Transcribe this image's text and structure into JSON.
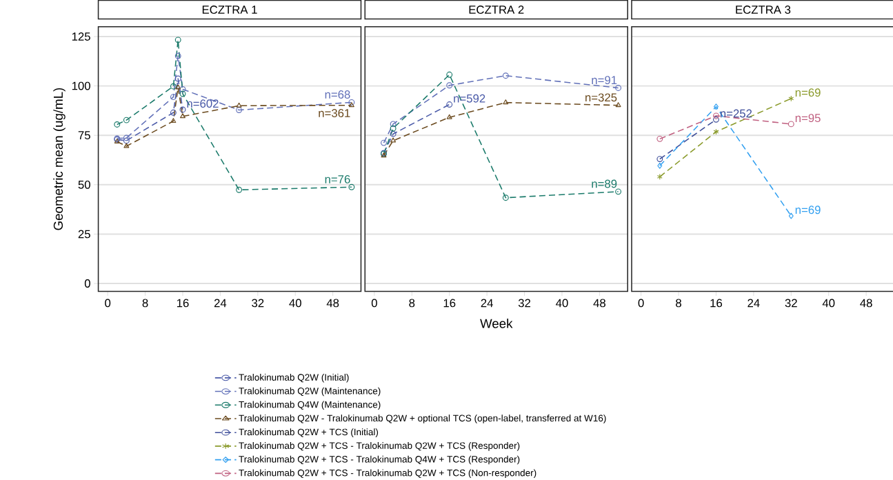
{
  "chart_data": [
    {
      "type": "line",
      "title": "ECZTRA 1",
      "ylabel": "Geometric mean (ug/mL)",
      "xlim": [
        -2,
        54
      ],
      "ylim": [
        -4,
        130
      ],
      "xticks": [
        0,
        8,
        16,
        24,
        32,
        40,
        48
      ],
      "yticks": [
        0,
        25,
        50,
        75,
        100,
        125
      ],
      "grid": "y",
      "legend": "bottom",
      "line_style": "dashed",
      "series": [
        {
          "name": "Tralokinumab Q2W (Initial)",
          "color": "#4a5aa8",
          "marker": "circle",
          "x": [
            2,
            4,
            14,
            15,
            16
          ],
          "values": [
            72.9,
            72.3,
            86.5,
            103.7,
            88
          ]
        },
        {
          "name": "Tralokinumab Q2W (Maintenance)",
          "color": "#6170b8",
          "marker": "circle",
          "x": [
            2,
            4,
            14,
            15,
            16,
            28,
            52
          ],
          "values": [
            73.4,
            73.7,
            94.4,
            115.2,
            98.3,
            87.8,
            91.7
          ]
        },
        {
          "name": "Tralokinumab Q4W (Maintenance)",
          "color": "#1a7a6a",
          "marker": "circle",
          "x": [
            2,
            4,
            14,
            15,
            16,
            28,
            52
          ],
          "values": [
            80.5,
            82.7,
            99.8,
            123.3,
            96,
            47.4,
            48.8
          ]
        },
        {
          "name": "Tralokinumab Q2W - Tralokinumab Q2W + optional TCS (open-label, transferred at W16)",
          "color": "#6b4a1e",
          "marker": "triangle",
          "x": [
            2,
            4,
            14,
            15,
            16,
            28,
            52
          ],
          "values": [
            71.8,
            69.5,
            82.2,
            99.2,
            84.6,
            90,
            90.2
          ]
        }
      ],
      "annotations": [
        {
          "text": "n=602",
          "x": 16,
          "y": 88
        },
        {
          "text": "n=68",
          "x": 52,
          "y": 91.7
        },
        {
          "text": "n=361",
          "x": 52,
          "y": 90.2
        },
        {
          "text": "n=76",
          "x": 52,
          "y": 48.8
        }
      ]
    },
    {
      "type": "line",
      "title": "ECZTRA 2",
      "xlabel": "Week",
      "xlim": [
        -2,
        54
      ],
      "ylim": [
        -4,
        130
      ],
      "xticks": [
        0,
        8,
        16,
        24,
        32,
        40,
        48
      ],
      "yticks": [
        0,
        25,
        50,
        75,
        100,
        125
      ],
      "grid": "y",
      "tick_labels": "x",
      "line_style": "dashed",
      "series": [
        {
          "color": "#4a5aa8",
          "marker": "circle",
          "x": [
            2,
            4,
            16
          ],
          "values": [
            66,
            75.7,
            90.6
          ]
        },
        {
          "color": "#6170b8",
          "marker": "circle",
          "x": [
            2,
            4,
            16,
            28,
            52
          ],
          "values": [
            71.2,
            80.7,
            100.3,
            105.2,
            99
          ]
        },
        {
          "color": "#1a7a6a",
          "marker": "circle",
          "x": [
            2,
            4,
            16,
            28,
            52
          ],
          "values": [
            65.6,
            78.5,
            105.7,
            43.4,
            46.5
          ]
        },
        {
          "color": "#6b4a1e",
          "marker": "triangle",
          "x": [
            2,
            4,
            16,
            28,
            52
          ],
          "values": [
            64.7,
            72.3,
            84.1,
            91.6,
            90.2
          ]
        }
      ],
      "annotations": [
        {
          "text": "n=592",
          "x": 16,
          "y": 90.6
        },
        {
          "text": "n=91",
          "x": 52,
          "y": 99
        },
        {
          "text": "n=325",
          "x": 52,
          "y": 90.2
        },
        {
          "text": "n=89",
          "x": 52,
          "y": 46.5
        }
      ]
    },
    {
      "type": "line",
      "title": "ECZTRA 3",
      "xlim": [
        -2,
        54
      ],
      "ylim": [
        -4,
        130
      ],
      "xticks": [
        0,
        8,
        16,
        24,
        32,
        40,
        48
      ],
      "yticks": [
        0,
        25,
        50,
        75,
        100,
        125
      ],
      "grid": "y",
      "tick_labels": "x",
      "legend": "bottom",
      "line_style": "dashed",
      "series": [
        {
          "name": "Tralokinumab Q2W + TCS (Initial)",
          "color": "#3d4d99",
          "marker": "circle",
          "x": [
            4,
            16
          ],
          "values": [
            63,
            83
          ]
        },
        {
          "name": "Tralokinumab Q2W + TCS - Tralokinumab Q2W + TCS (Responder)",
          "color": "#8a9a2a",
          "marker": "cross",
          "x": [
            4,
            16,
            32
          ],
          "values": [
            54,
            76.8,
            93.6
          ]
        },
        {
          "name": "Tralokinumab Q2W + TCS - Tralokinumab Q4W + TCS (Responder)",
          "color": "#33a0f0",
          "marker": "diamond",
          "x": [
            4,
            16,
            32
          ],
          "values": [
            59.6,
            89.5,
            34.2
          ]
        },
        {
          "name": "Tralokinumab Q2W + TCS - Tralokinumab Q2W + TCS (Non-responder)",
          "color": "#c06080",
          "marker": "circle",
          "x": [
            4,
            16,
            32
          ],
          "values": [
            73.2,
            84.9,
            80.7
          ]
        }
      ],
      "annotations": [
        {
          "text": "n=252",
          "x": 16,
          "y": 83
        },
        {
          "text": "n=69",
          "x": 32,
          "y": 93.6
        },
        {
          "text": "n=95",
          "x": 32,
          "y": 80.7
        },
        {
          "text": "n=69",
          "x": 32,
          "y": 34.2
        }
      ]
    }
  ]
}
